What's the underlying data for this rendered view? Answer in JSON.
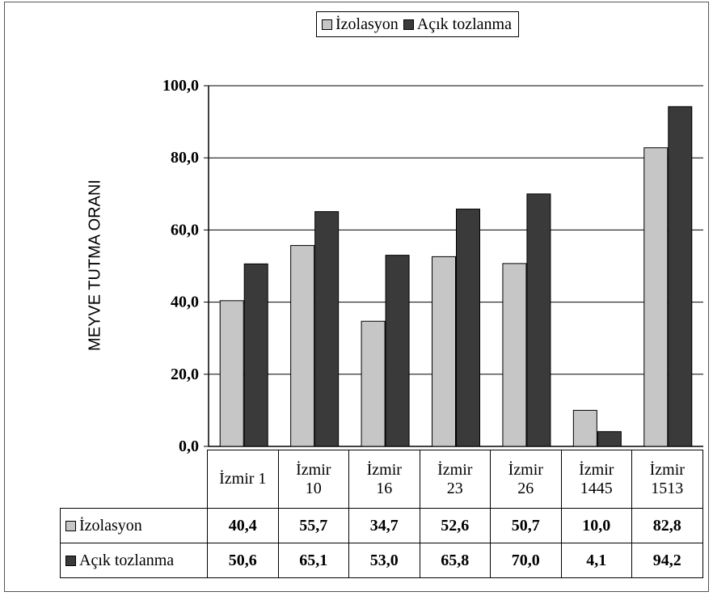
{
  "legend": {
    "items": [
      {
        "label": "İzolasyon",
        "color": "#c6c6c6"
      },
      {
        "label": "Açık tozlanma",
        "color": "#3a3a3a"
      }
    ]
  },
  "chart_data": {
    "type": "bar",
    "categories": [
      "İzmir 1",
      "İzmir 10",
      "İzmir 16",
      "İzmir 23",
      "İzmir 26",
      "İzmir 1445",
      "İzmir 1513"
    ],
    "series": [
      {
        "name": "İzolasyon",
        "values": [
          40.4,
          55.7,
          34.7,
          52.6,
          50.7,
          10.0,
          82.8
        ],
        "color": "#c6c6c6"
      },
      {
        "name": "Açık tozlanma",
        "values": [
          50.6,
          65.1,
          53.0,
          65.8,
          70.0,
          4.1,
          94.2
        ],
        "color": "#3a3a3a"
      }
    ],
    "ylabel": "MEYVE TUTMA ORANI",
    "ylim": [
      0,
      100
    ],
    "yticks": [
      "0,0",
      "20,0",
      "40,0",
      "60,0",
      "80,0",
      "100,0"
    ],
    "grid": true,
    "legend_position": "top",
    "data_table": {
      "category_rows": [
        [
          "İzmir 1"
        ],
        [
          "İzmir",
          "10"
        ],
        [
          "İzmir",
          "16"
        ],
        [
          "İzmir",
          "23"
        ],
        [
          "İzmir",
          "26"
        ],
        [
          "İzmir",
          "1445"
        ],
        [
          "İzmir",
          "1513"
        ]
      ],
      "rows": [
        {
          "label": "İzolasyon",
          "values": [
            "40,4",
            "55,7",
            "34,7",
            "52,6",
            "50,7",
            "10,0",
            "82,8"
          ]
        },
        {
          "label": "Açık tozlanma",
          "values": [
            "50,6",
            "65,1",
            "53,0",
            "65,8",
            "70,0",
            "4,1",
            "94,2"
          ]
        }
      ]
    }
  }
}
